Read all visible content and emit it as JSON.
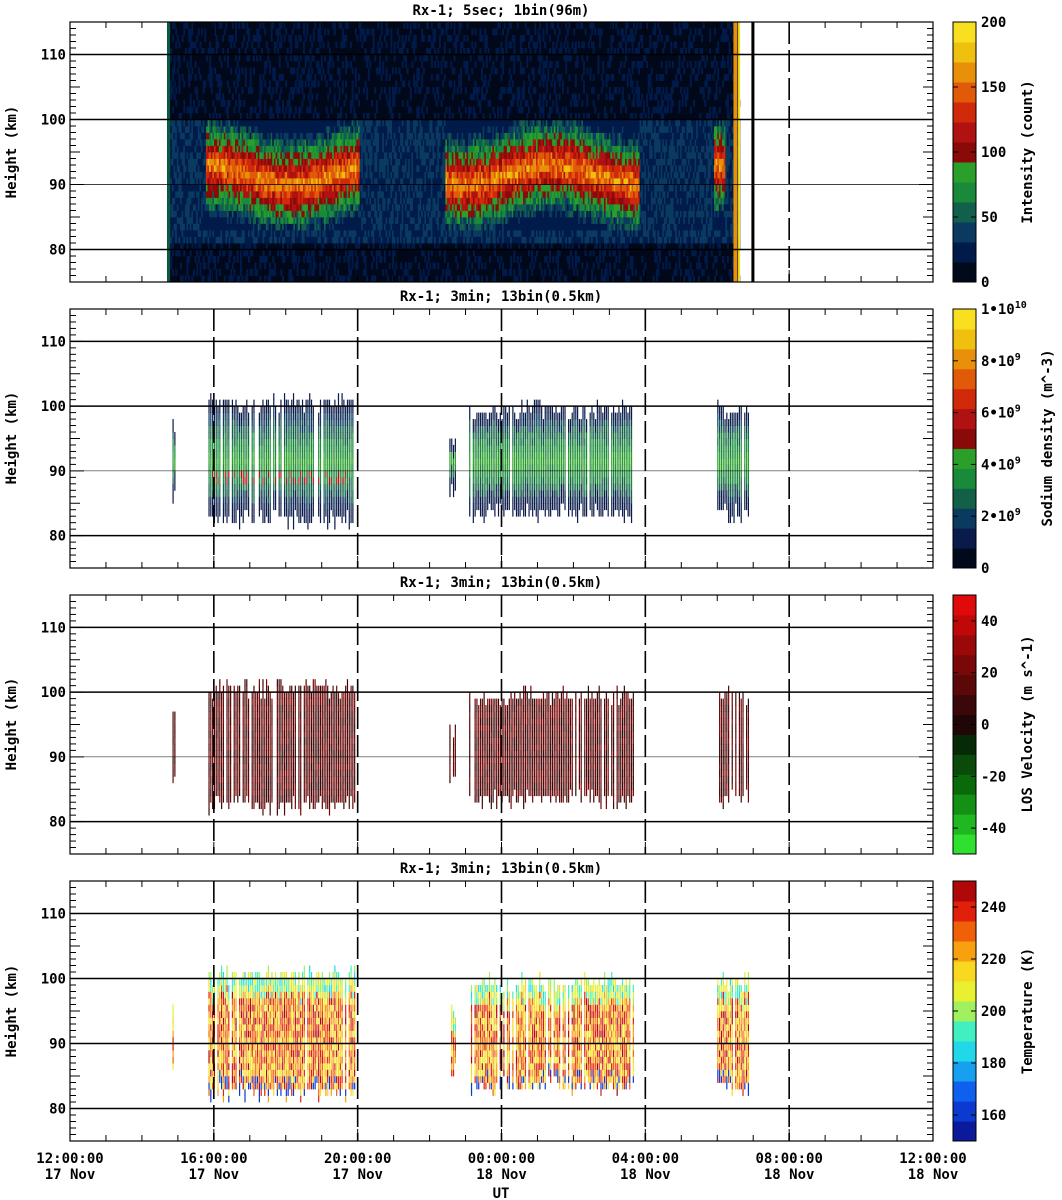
{
  "figure": {
    "xlabel": "UT",
    "x_tick_times": [
      "12:00:00",
      "16:00:00",
      "20:00:00",
      "00:00:00",
      "04:00:00",
      "08:00:00",
      "12:00:00"
    ],
    "x_tick_dates": [
      "17 Nov",
      "17 Nov",
      "17 Nov",
      "18 Nov",
      "18 Nov",
      "18 Nov",
      "18 Nov"
    ]
  },
  "chart_data": [
    {
      "type": "heatmap",
      "title": "Rx-1;  5sec; 1bin(96m)",
      "ylabel": "Height (km)",
      "ylim": [
        75,
        115
      ],
      "yticks": [
        "80",
        "90",
        "100",
        "110"
      ],
      "colorbar": {
        "label": "Intensity (count)",
        "ticks": [
          "0",
          "50",
          "100",
          "150",
          "200"
        ],
        "range": [
          0,
          200
        ],
        "colors": [
          "#000a1a",
          "#001a4a",
          "#0a3a60",
          "#12604c",
          "#1a8a3a",
          "#2aa02a",
          "#8a0a0a",
          "#b01212",
          "#d02a0a",
          "#e05a0a",
          "#e8900a",
          "#f0c010",
          "#f8e020"
        ]
      },
      "grid": "horizontal lines at 80, 100, 110 km",
      "data_hours": [
        14.7,
        30.6
      ],
      "annotations": "dark background with returns between ~14:40 and ~06:35 UT; enhanced layer 83-98 km at 16:00-20:00 and 23:00-04:00"
    },
    {
      "type": "heatmap",
      "title": "Rx-1; 3min; 13bin(0.5km)",
      "ylabel": "Height (km)",
      "ylim": [
        75,
        115
      ],
      "yticks": [
        "80",
        "90",
        "100",
        "110"
      ],
      "colorbar": {
        "label": "Sodium density (m^-3)",
        "ticks": [
          "0",
          "2•10^9",
          "4•10^9",
          "6•10^9",
          "8•10^9",
          "1•10^10"
        ],
        "range": [
          0,
          10000000000
        ],
        "colors": [
          "#000a1a",
          "#0a1a4a",
          "#0a3a60",
          "#126048",
          "#1a8a3a",
          "#2aa02a",
          "#8a0a0a",
          "#b01212",
          "#d02a0a",
          "#e05a0a",
          "#e8900a",
          "#f0c010",
          "#f8e020"
        ]
      },
      "grid": "horizontal lines at 80, 90, 100, 110 km; dashed vertical lines every 4 h"
    },
    {
      "type": "heatmap",
      "title": "Rx-1; 3min; 13bin(0.5km)",
      "ylabel": "Height (km)",
      "ylim": [
        75,
        115
      ],
      "yticks": [
        "80",
        "90",
        "100",
        "110"
      ],
      "colorbar": {
        "label": "LOS Velocity (m s^-1)",
        "ticks": [
          "-40",
          "-20",
          "0",
          "20",
          "40"
        ],
        "range": [
          -50,
          50
        ],
        "colors": [
          "#30e030",
          "#20b820",
          "#149014",
          "#0a6a0a",
          "#0a4a0a",
          "#062a06",
          "#200606",
          "#3a0808",
          "#5a0808",
          "#7a0808",
          "#9a0808",
          "#c00808",
          "#e00a0a"
        ]
      },
      "grid": "horizontal lines at 80, 90, 100, 110 km; dashed vertical lines every 4 h"
    },
    {
      "type": "heatmap",
      "title": "Rx-1; 3min; 13bin(0.5km)",
      "ylabel": "Height (km)",
      "ylim": [
        75,
        115
      ],
      "yticks": [
        "80",
        "90",
        "100",
        "110"
      ],
      "colorbar": {
        "label": "Temperature (K)",
        "ticks": [
          "160",
          "180",
          "200",
          "220",
          "240"
        ],
        "range": [
          150,
          250
        ],
        "colors": [
          "#0a1a9a",
          "#0a3ad0",
          "#1060f0",
          "#18a0f0",
          "#20d8e8",
          "#40f0c0",
          "#a0f060",
          "#e8f030",
          "#f8d820",
          "#f8a010",
          "#f06008",
          "#e02008",
          "#b00808"
        ]
      },
      "grid": "horizontal lines at 80, 90, 100, 110 km; dashed vertical lines every 4 h"
    }
  ],
  "lidar_segments": [
    {
      "start": 14.85,
      "end": 14.95,
      "bottom": 87,
      "top": 97
    },
    {
      "start": 15.85,
      "end": 19.95,
      "bottom": 83,
      "top": 100
    },
    {
      "start": 22.55,
      "end": 22.75,
      "bottom": 87,
      "top": 94
    },
    {
      "start": 23.1,
      "end": 27.7,
      "bottom": 84,
      "top": 99
    },
    {
      "start": 30.0,
      "end": 30.9,
      "bottom": 84,
      "top": 99
    }
  ]
}
